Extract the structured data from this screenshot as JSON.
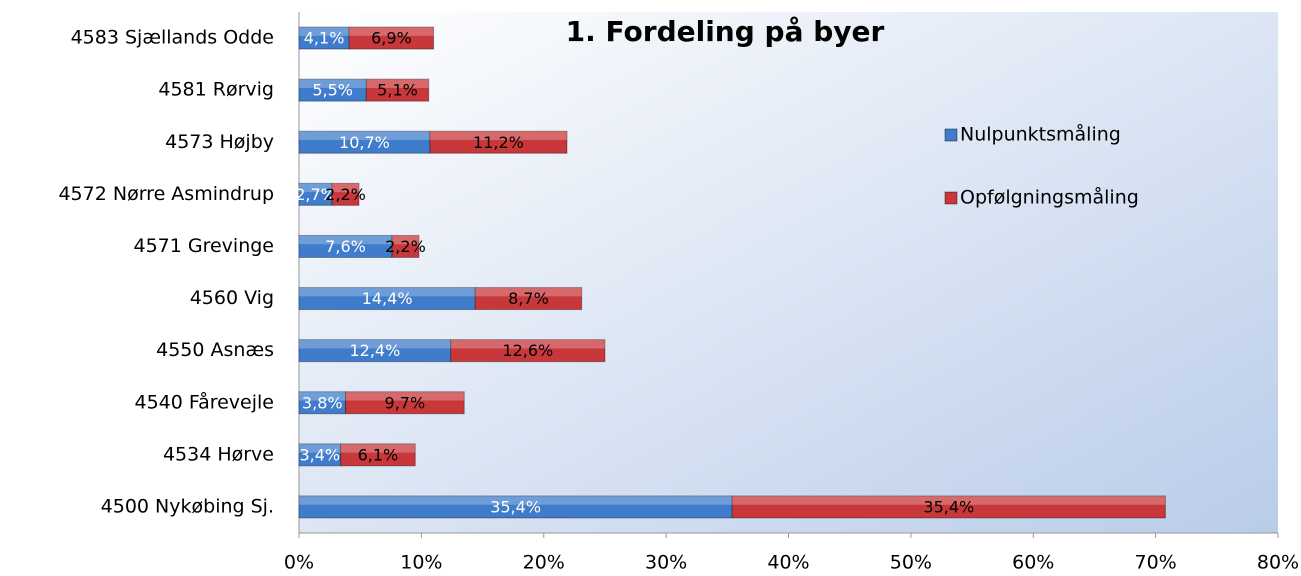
{
  "chart_data": {
    "type": "stacked_barh",
    "title": "1. Fordeling på byer",
    "categories": [
      "4583 Sjællands Odde",
      "4581 Rørvig",
      "4573 Højby",
      "4572 Nørre Asmindrup",
      "4571 Grevinge",
      "4560 Vig",
      "4550 Asnæs",
      "4540 Fårevejle",
      "4534 Hørve",
      "4500 Nykøbing Sj."
    ],
    "series": [
      {
        "name": "Nulpunktsmåling",
        "color": "#3f7ccb",
        "values": [
          4.1,
          5.5,
          10.7,
          2.7,
          7.6,
          14.4,
          12.4,
          3.8,
          3.4,
          35.4
        ],
        "value_labels": [
          "4,1%",
          "5,5%",
          "10,7%",
          "2,7%",
          "7,6%",
          "14,4%",
          "12,4%",
          "3,8%",
          "3,4%",
          "35,4%"
        ]
      },
      {
        "name": "Opfølgningsmåling",
        "color": "#c8373a",
        "values": [
          6.9,
          5.1,
          11.2,
          2.2,
          2.2,
          8.7,
          12.6,
          9.7,
          6.1,
          35.4
        ],
        "value_labels": [
          "6,9%",
          "5,1%",
          "11,2%",
          "2,2%",
          "2,2%",
          "8,7%",
          "12,6%",
          "9,7%",
          "6,1%",
          "35,4%"
        ]
      }
    ],
    "xlim": [
      0,
      80
    ],
    "xticks": [
      {
        "value": 0,
        "label": "0%"
      },
      {
        "value": 10,
        "label": "10%"
      },
      {
        "value": 20,
        "label": "20%"
      },
      {
        "value": 30,
        "label": "30%"
      },
      {
        "value": 40,
        "label": "40%"
      },
      {
        "value": 50,
        "label": "50%"
      },
      {
        "value": 60,
        "label": "60%"
      },
      {
        "value": 70,
        "label": "70%"
      },
      {
        "value": 80,
        "label": "80%"
      }
    ],
    "legend": "right"
  }
}
